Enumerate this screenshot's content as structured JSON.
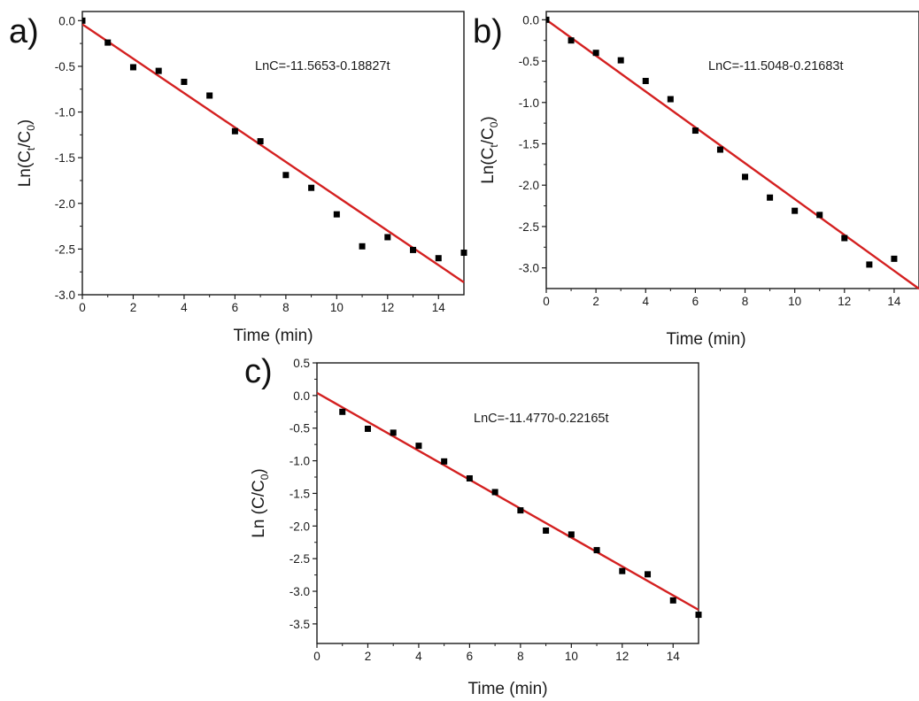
{
  "chart_data": [
    {
      "type": "scatter",
      "panel_label": "a)",
      "xlabel": "Time (min)",
      "ylabel": {
        "prefix": "Ln(C",
        "sub1": "t",
        "mid": "/C",
        "sub2": "0",
        "suffix": ")"
      },
      "xlim": [
        0,
        15
      ],
      "ylim": [
        -3.0,
        0.1
      ],
      "xticks": [
        0,
        2,
        4,
        6,
        8,
        10,
        12,
        14
      ],
      "xtick_labels": [
        "0",
        "2",
        "4",
        "6",
        "8",
        "10",
        "12",
        "14"
      ],
      "yticks": [
        0.0,
        -0.5,
        -1.0,
        -1.5,
        -2.0,
        -2.5,
        -3.0
      ],
      "ytick_labels": [
        "0.0",
        "-0.5",
        "-1.0",
        "-1.5",
        "-2.0",
        "-2.5",
        "-3.0"
      ],
      "points": {
        "x": [
          0,
          1,
          2,
          3,
          4,
          5,
          6,
          7,
          8,
          9,
          10,
          11,
          12,
          13,
          14,
          15
        ],
        "y": [
          0.0,
          -0.24,
          -0.51,
          -0.55,
          -0.67,
          -0.82,
          -1.21,
          -1.32,
          -1.69,
          -1.83,
          -2.12,
          -2.47,
          -2.37,
          -2.51,
          -2.6,
          -2.54
        ]
      },
      "fit": {
        "intercept": -0.04,
        "slope": -0.18827,
        "label": "LnC=-11.5653-0.18827t"
      },
      "grid": false,
      "colors": {
        "points": "#000000",
        "fit": "#d42020"
      }
    },
    {
      "type": "scatter",
      "panel_label": "b)",
      "xlabel": "Time (min)",
      "ylabel": {
        "prefix": "Ln(C",
        "sub1": "t",
        "mid": "/C",
        "sub2": "0",
        "suffix": ")"
      },
      "xlim": [
        0,
        15
      ],
      "ylim": [
        -3.25,
        0.1
      ],
      "xticks": [
        0,
        2,
        4,
        6,
        8,
        10,
        12,
        14
      ],
      "xtick_labels": [
        "0",
        "2",
        "4",
        "6",
        "8",
        "10",
        "12",
        "14"
      ],
      "yticks": [
        0.0,
        -0.5,
        -1.0,
        -1.5,
        -2.0,
        -2.5,
        -3.0
      ],
      "ytick_labels": [
        "0.0",
        "-0.5",
        "-1.0",
        "-1.5",
        "-2.0",
        "-2.5",
        "-3.0"
      ],
      "points": {
        "x": [
          0,
          1,
          2,
          3,
          4,
          5,
          6,
          7,
          8,
          9,
          10,
          11,
          12,
          13,
          14
        ],
        "y": [
          0.0,
          -0.25,
          -0.4,
          -0.49,
          -0.74,
          -0.96,
          -1.34,
          -1.57,
          -1.9,
          -2.15,
          -2.31,
          -2.36,
          -2.64,
          -2.96,
          -2.89
        ]
      },
      "fit": {
        "intercept": 0.0,
        "slope": -0.21683,
        "label": "LnC=-11.5048-0.21683t"
      },
      "grid": false,
      "colors": {
        "points": "#000000",
        "fit": "#d42020"
      }
    },
    {
      "type": "scatter",
      "panel_label": "c)",
      "xlabel": "Time (min)",
      "ylabel": {
        "prefix": "Ln (C/C",
        "sub1": "",
        "mid": "",
        "sub2": "0",
        "suffix": ")"
      },
      "xlim": [
        0,
        15
      ],
      "ylim": [
        -3.8,
        0.5
      ],
      "xticks": [
        0,
        2,
        4,
        6,
        8,
        10,
        12,
        14
      ],
      "xtick_labels": [
        "0",
        "2",
        "4",
        "6",
        "8",
        "10",
        "12",
        "14"
      ],
      "yticks": [
        0.5,
        0.0,
        -0.5,
        -1.0,
        -1.5,
        -2.0,
        -2.5,
        -3.0,
        -3.5
      ],
      "ytick_labels": [
        "0.5",
        "0.0",
        "-0.5",
        "-1.0",
        "-1.5",
        "-2.0",
        "-2.5",
        "-3.0",
        "-3.5"
      ],
      "points": {
        "x": [
          1,
          2,
          3,
          4,
          5,
          6,
          7,
          8,
          9,
          10,
          11,
          12,
          13,
          14,
          15
        ],
        "y": [
          -0.25,
          -0.51,
          -0.57,
          -0.77,
          -1.01,
          -1.27,
          -1.48,
          -1.76,
          -2.07,
          -2.13,
          -2.37,
          -2.69,
          -2.74,
          -3.14,
          -3.36
        ]
      },
      "fit": {
        "intercept": 0.04,
        "slope": -0.22165,
        "label": "LnC=-11.4770-0.22165t"
      },
      "grid": false,
      "colors": {
        "points": "#000000",
        "fit": "#d42020"
      }
    }
  ]
}
